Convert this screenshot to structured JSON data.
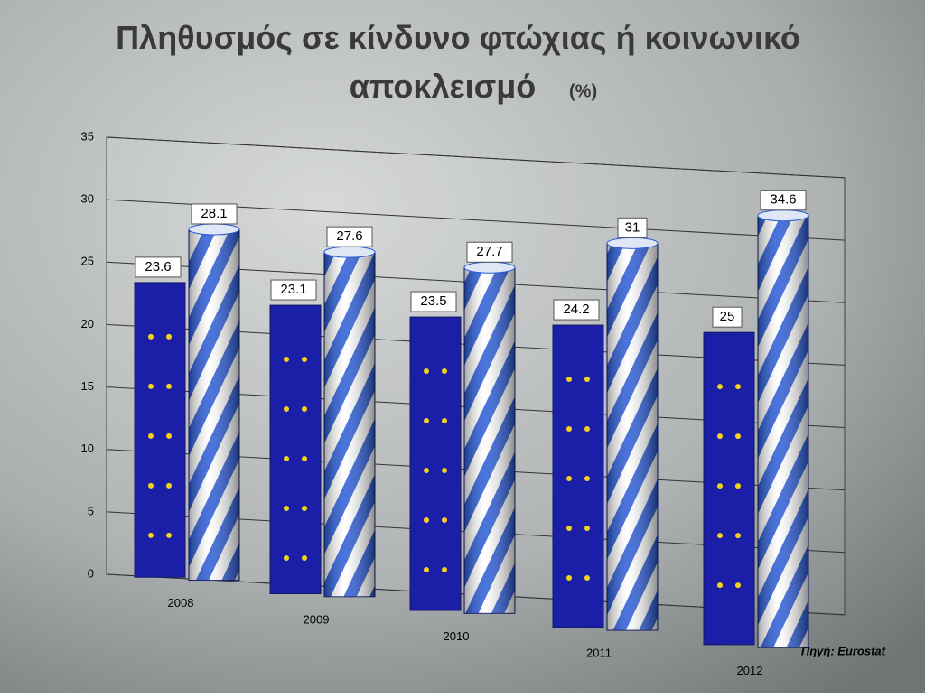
{
  "chart_data": {
    "type": "bar",
    "title": "Πληθυσμός σε κίνδυνο φτώχιας ή κοινωνικό αποκλεισμό",
    "title_unit": "(%)",
    "source": "Πηγή: Eurostat",
    "categories": [
      "2008",
      "2009",
      "2010",
      "2011",
      "2012"
    ],
    "series": [
      {
        "color": "#1b1fa8",
        "values": [
          23.6,
          23.1,
          23.5,
          24.2,
          25
        ]
      },
      {
        "color": "#2a5bd7",
        "values": [
          28.1,
          27.6,
          27.7,
          31,
          34.6
        ]
      }
    ],
    "ylim": [
      0,
      35
    ],
    "yticks": [
      0,
      5,
      10,
      15,
      20,
      25,
      30,
      35
    ],
    "grid": true
  }
}
